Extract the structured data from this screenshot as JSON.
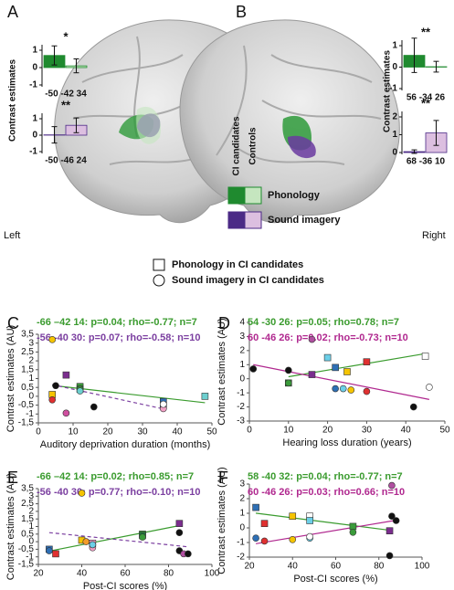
{
  "legend": {
    "columns": [
      "CI candidates",
      "Controls"
    ],
    "rows": [
      {
        "name": "Phonology",
        "colors": [
          "#1f8a2f",
          "#c5e6bf"
        ]
      },
      {
        "name": "Sound imagery",
        "colors": [
          "#4b2a86",
          "#dcbfe0"
        ]
      }
    ]
  },
  "markers": [
    {
      "marker": "square",
      "label": "Phonology in CI candidates"
    },
    {
      "marker": "circle",
      "label": "Sound imagery in CI candidates"
    }
  ],
  "chart_data": [
    {
      "type": "bar",
      "panel": "A",
      "side": "Left",
      "ylabel": "Contrast estimates",
      "insets": [
        {
          "row": 0,
          "annotation": "*",
          "coordinates": "-50 -42 34",
          "values": [
            0.7,
            0.1
          ],
          "errors": [
            0.55,
            0.4
          ],
          "ylim": [
            -1,
            1
          ],
          "yticks": [
            -1,
            0,
            1
          ]
        },
        {
          "row": 1,
          "annotation": "**",
          "coordinates": "-50 -46 24",
          "values": [
            0.02,
            0.6
          ],
          "errors": [
            0.5,
            0.45
          ],
          "ylim": [
            -1,
            1
          ],
          "yticks": [
            -1,
            0,
            1
          ]
        }
      ]
    },
    {
      "type": "bar",
      "panel": "B",
      "side": "Right",
      "ylabel": "Contrast estimates",
      "insets": [
        {
          "row": 0,
          "annotation": "**",
          "coordinates": "56 -34 26",
          "values": [
            0.55,
            0.02
          ],
          "errors": [
            0.8,
            0.25
          ],
          "ylim": [
            -1,
            1
          ],
          "yticks": [
            -1,
            0,
            1
          ]
        },
        {
          "row": 1,
          "annotation": "**",
          "coordinates": "68 -36 10",
          "values": [
            0.05,
            1.1
          ],
          "errors": [
            0.1,
            0.7
          ],
          "ylim": [
            0,
            2
          ],
          "yticks": [
            0,
            1,
            2
          ]
        }
      ]
    },
    {
      "type": "scatter",
      "panel": "C",
      "xlabel": "Auditory deprivation duration (months)",
      "ylabel": "Contrast estimates (AU)",
      "xlim": [
        0,
        50
      ],
      "xticks": [
        0,
        10,
        20,
        30,
        40,
        50
      ],
      "ylim": [
        -1.5,
        3.5
      ],
      "yticks": [
        {
          "value": -1.5,
          "label": "-1,5"
        },
        -1,
        {
          "value": -0.5,
          "label": "-0,5"
        },
        0,
        {
          "value": 0.5,
          "label": "0,5"
        },
        1,
        {
          "value": 1.5,
          "label": "1,5"
        },
        2,
        {
          "value": 2.5,
          "label": "2,5"
        },
        3,
        {
          "value": 3.5,
          "label": "3,5"
        }
      ],
      "series": [
        {
          "name": "-66 –42 14: p=0.04; rho=-0.77; n=7",
          "color": "#3a9b2e",
          "marker": "square",
          "dash": false,
          "x": [
            4,
            8,
            12,
            36,
            36,
            48,
            12
          ],
          "values": [
            0.1,
            1.2,
            0.55,
            -0.3,
            -0.5,
            0,
            0.4
          ],
          "point_colors": [
            "#f5c400",
            "#7b2d8e",
            "#3a9b3a",
            "#2e6fb5",
            "#e03030",
            "#6ccfcf",
            "#1a7a3a"
          ]
        },
        {
          "name": "-56 -40 30: p=0.07; rho=-0.58; n=10",
          "color": "#7b3fa0",
          "marker": "circle",
          "dash": true,
          "x": [
            4,
            5,
            8,
            12,
            16,
            36,
            36,
            36,
            4,
            12
          ],
          "values": [
            3.2,
            0.6,
            -0.95,
            0.4,
            -0.6,
            -0.55,
            -0.7,
            -0.45,
            -0.2,
            0.3
          ],
          "point_colors": [
            "#f5c400",
            "#111111",
            "#d04fa0",
            "#3a9b3a",
            "#111111",
            "#2e6fb5",
            "#f29fc6",
            "#ffffff",
            "#e03030",
            "#6ccfcf"
          ]
        }
      ]
    },
    {
      "type": "scatter",
      "panel": "D",
      "xlabel": "Hearing loss duration (years)",
      "ylabel": "Contrast estimates (AU)",
      "xlim": [
        0,
        50
      ],
      "xticks": [
        0,
        10,
        20,
        30,
        40,
        50
      ],
      "ylim": [
        -3,
        4
      ],
      "yticks": [
        -3,
        -2,
        -1,
        0,
        1,
        2,
        3,
        4
      ],
      "series": [
        {
          "name": "54 -30 26: p=0.05; rho=0.78; n=7",
          "color": "#3a9b2e",
          "marker": "square",
          "dash": false,
          "x": [
            10,
            16,
            20,
            22,
            25,
            30,
            45
          ],
          "values": [
            -0.3,
            0.3,
            1.5,
            0.8,
            0.5,
            1.2,
            1.6
          ],
          "point_colors": [
            "#3a9b3a",
            "#7b2d8e",
            "#6ccfe8",
            "#2e6fb5",
            "#f5c400",
            "#e03030",
            "#ffffff"
          ]
        },
        {
          "name": "60 -46 26: p=0.02; rho=-0.73; n=10",
          "color": "#b0288f",
          "marker": "circle",
          "dash": false,
          "x": [
            1,
            10,
            10,
            16,
            22,
            24,
            26,
            30,
            42,
            46
          ],
          "values": [
            0.7,
            0.6,
            -0.3,
            2.8,
            -0.7,
            -0.7,
            -0.8,
            -0.9,
            -2,
            -0.6
          ],
          "point_colors": [
            "#111111",
            "#111111",
            "#3a9b3a",
            "#b04fa0",
            "#2e6fb5",
            "#6ccfe8",
            "#f5c400",
            "#e03030",
            "#111111",
            "#ffffff"
          ]
        }
      ]
    },
    {
      "type": "scatter",
      "panel": "E",
      "xlabel": "Post-CI scores (%)",
      "ylabel": "Contrast estimates (AU)",
      "xlim": [
        20,
        100
      ],
      "xticks": [
        20,
        40,
        60,
        80,
        100
      ],
      "ylim": [
        -1.5,
        3.5
      ],
      "yticks": [
        {
          "value": -1.5,
          "label": "-1,5"
        },
        -1,
        {
          "value": -0.5,
          "label": "-0,5"
        },
        0,
        {
          "value": 0.5,
          "label": "0,5"
        },
        1,
        {
          "value": 1.5,
          "label": "1,5"
        },
        2,
        {
          "value": 2.5,
          "label": "2,5"
        },
        3,
        {
          "value": 3.5,
          "label": "3,5"
        }
      ],
      "series": [
        {
          "name": "-66 –42 14: p=0.02; rho=0.85; n=7",
          "color": "#3a9b2e",
          "marker": "square",
          "dash": false,
          "x": [
            25,
            28,
            40,
            45,
            68,
            68,
            85
          ],
          "values": [
            -0.5,
            -0.8,
            0.1,
            -0.1,
            0.5,
            0.4,
            1.2
          ],
          "point_colors": [
            "#2e6fb5",
            "#e03030",
            "#f5c400",
            "#f29fc6",
            "#3a9b3a",
            "#1a7a3a",
            "#7b2d8e"
          ]
        },
        {
          "name": "-56 -40 30: p=0.77; rho=-0.10; n=10",
          "color": "#7b3fa0",
          "marker": "circle",
          "dash": true,
          "x": [
            25,
            40,
            45,
            45,
            68,
            85,
            85,
            87,
            89,
            42
          ],
          "values": [
            -0.6,
            3.2,
            -0.4,
            -0.2,
            0.3,
            0.6,
            -0.6,
            -0.8,
            -0.8,
            0
          ],
          "point_colors": [
            "#2e6fb5",
            "#f5c400",
            "#f29fc6",
            "#6ccfe8",
            "#3a9b3a",
            "#111111",
            "#111111",
            "#b04fa0",
            "#111111",
            "#f39c2a"
          ]
        }
      ]
    },
    {
      "type": "scatter",
      "panel": "F",
      "xlabel": "Post-CI scores (%)",
      "ylabel": "Contrast estimates (AU)",
      "xlim": [
        20,
        100
      ],
      "xticks": [
        20,
        40,
        60,
        80,
        100
      ],
      "ylim": [
        -2,
        3
      ],
      "yticks": [
        -2,
        -1,
        0,
        1,
        2,
        3
      ],
      "series": [
        {
          "name": "58 -40 32: p=0.04; rho=-0.77; n=7",
          "color": "#3a9b2e",
          "marker": "square",
          "dash": false,
          "x": [
            23,
            27,
            40,
            48,
            48,
            68,
            85
          ],
          "values": [
            1.4,
            0.3,
            0.8,
            0.8,
            0.5,
            0.1,
            -0.2
          ],
          "point_colors": [
            "#2e6fb5",
            "#e03030",
            "#f5c400",
            "#ffffff",
            "#6ccfe8",
            "#3a9b3a",
            "#7b2d8e"
          ]
        },
        {
          "name": "60 -46 26: p=0.03; rho=0.66; n=10",
          "color": "#b0288f",
          "marker": "circle",
          "dash": false,
          "x": [
            23,
            27,
            40,
            48,
            68,
            85,
            86,
            86,
            88,
            48
          ],
          "values": [
            -0.7,
            -0.9,
            -0.8,
            -0.7,
            -0.3,
            -1.9,
            0.8,
            2.9,
            0.5,
            -0.6
          ],
          "point_colors": [
            "#2e6fb5",
            "#e03030",
            "#f5c400",
            "#6ccfe8",
            "#3a9b3a",
            "#111111",
            "#111111",
            "#b04fa0",
            "#111111",
            "#ffffff"
          ]
        }
      ]
    }
  ]
}
